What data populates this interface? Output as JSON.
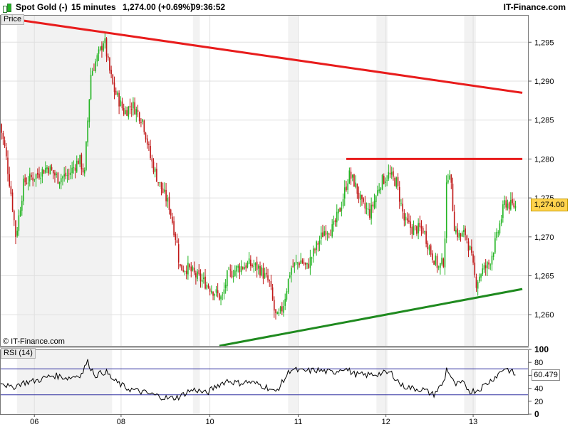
{
  "header": {
    "instrument": "Spot Gold (-)",
    "timeframe": "15 minutes",
    "price_change": "1,274.00 (+0.69%)",
    "time": "09:36:52",
    "brand": "IT-Finance.com"
  },
  "panels": {
    "price_label": "Price",
    "rsi_label": "RSI (14)",
    "copyright": "© IT-Finance.com",
    "last_price": "1,274.00",
    "last_rsi": "60.479"
  },
  "colors": {
    "up_candle": "#22b422",
    "down_candle": "#c01818",
    "resistance_line": "#e81c1c",
    "support_line": "#1f8a1f",
    "grid": "#e0e0e0",
    "shade": "#f2f2f2",
    "rsi_line": "#000000",
    "rsi_levels": "#3030a0"
  },
  "chart_data": [
    {
      "type": "candlestick",
      "ylim": [
        1256,
        1298.5
      ],
      "y_ticks": [
        "1,260",
        "1,265",
        "1,270",
        "1,275",
        "1,280",
        "1,285",
        "1,290",
        "1,295"
      ],
      "y_tick_values": [
        1260,
        1265,
        1270,
        1275,
        1280,
        1285,
        1290,
        1295
      ],
      "x_ticks": [
        "06",
        "08",
        "10",
        "11",
        "12",
        "13"
      ],
      "x_tick_positions": [
        0.065,
        0.229,
        0.397,
        0.564,
        0.73,
        0.895
      ],
      "shaded_sessions": [
        [
          0.032,
          0.212
        ],
        [
          0.365,
          0.378
        ],
        [
          0.545,
          0.565
        ],
        [
          0.712,
          0.733
        ],
        [
          0.878,
          0.9
        ]
      ],
      "keypoints": [
        [
          0.0,
          1284.5
        ],
        [
          0.01,
          1281
        ],
        [
          0.022,
          1275
        ],
        [
          0.03,
          1270
        ],
        [
          0.045,
          1277
        ],
        [
          0.07,
          1278
        ],
        [
          0.09,
          1279
        ],
        [
          0.11,
          1277.5
        ],
        [
          0.13,
          1278
        ],
        [
          0.15,
          1280
        ],
        [
          0.16,
          1278
        ],
        [
          0.165,
          1284
        ],
        [
          0.172,
          1291
        ],
        [
          0.19,
          1294
        ],
        [
          0.197,
          1295.5
        ],
        [
          0.205,
          1292
        ],
        [
          0.215,
          1289
        ],
        [
          0.235,
          1286
        ],
        [
          0.25,
          1287
        ],
        [
          0.27,
          1285
        ],
        [
          0.285,
          1280
        ],
        [
          0.3,
          1277
        ],
        [
          0.32,
          1274
        ],
        [
          0.335,
          1269
        ],
        [
          0.34,
          1266
        ],
        [
          0.355,
          1266
        ],
        [
          0.37,
          1265
        ],
        [
          0.39,
          1264
        ],
        [
          0.405,
          1263
        ],
        [
          0.42,
          1262
        ],
        [
          0.43,
          1265
        ],
        [
          0.45,
          1266
        ],
        [
          0.47,
          1266.5
        ],
        [
          0.49,
          1266
        ],
        [
          0.51,
          1264
        ],
        [
          0.52,
          1260
        ],
        [
          0.525,
          1259.5
        ],
        [
          0.535,
          1261
        ],
        [
          0.55,
          1266
        ],
        [
          0.57,
          1267
        ],
        [
          0.58,
          1266
        ],
        [
          0.6,
          1269
        ],
        [
          0.615,
          1271
        ],
        [
          0.63,
          1271
        ],
        [
          0.645,
          1274
        ],
        [
          0.66,
          1278
        ],
        [
          0.67,
          1277
        ],
        [
          0.685,
          1274
        ],
        [
          0.7,
          1273
        ],
        [
          0.71,
          1275
        ],
        [
          0.72,
          1277
        ],
        [
          0.735,
          1278
        ],
        [
          0.75,
          1277
        ],
        [
          0.765,
          1272
        ],
        [
          0.78,
          1271
        ],
        [
          0.8,
          1271
        ],
        [
          0.815,
          1268
        ],
        [
          0.83,
          1266
        ],
        [
          0.84,
          1267
        ],
        [
          0.845,
          1277
        ],
        [
          0.85,
          1279
        ],
        [
          0.86,
          1271
        ],
        [
          0.87,
          1270
        ],
        [
          0.88,
          1270.5
        ],
        [
          0.89,
          1268
        ],
        [
          0.9,
          1264
        ],
        [
          0.91,
          1265.5
        ],
        [
          0.925,
          1266.5
        ],
        [
          0.94,
          1270
        ],
        [
          0.955,
          1274.5
        ],
        [
          0.965,
          1274
        ],
        [
          0.975,
          1274
        ]
      ],
      "candle_count": 330,
      "trendlines": [
        {
          "role": "resistance",
          "from": [
            0.0,
            1298.2
          ],
          "to": [
            0.988,
            1288.5
          ]
        },
        {
          "role": "resistance",
          "from": [
            0.655,
            1280
          ],
          "to": [
            0.988,
            1280
          ]
        },
        {
          "role": "support",
          "from": [
            0.415,
            1256
          ],
          "to": [
            0.988,
            1263.3
          ]
        }
      ],
      "last_value": 1274.0
    },
    {
      "type": "line",
      "name": "RSI (14)",
      "ylim": [
        0,
        100
      ],
      "y_ticks": [
        "100",
        "80",
        "60",
        "40",
        "20",
        "0"
      ],
      "y_tick_values": [
        100,
        80,
        60,
        40,
        20,
        0
      ],
      "levels": [
        70,
        30
      ],
      "keypoints": [
        [
          0.0,
          52
        ],
        [
          0.02,
          40
        ],
        [
          0.04,
          48
        ],
        [
          0.07,
          52
        ],
        [
          0.1,
          60
        ],
        [
          0.13,
          56
        ],
        [
          0.155,
          62
        ],
        [
          0.165,
          82
        ],
        [
          0.18,
          60
        ],
        [
          0.2,
          66
        ],
        [
          0.215,
          52
        ],
        [
          0.24,
          40
        ],
        [
          0.26,
          36
        ],
        [
          0.28,
          32
        ],
        [
          0.3,
          28
        ],
        [
          0.32,
          24
        ],
        [
          0.34,
          27
        ],
        [
          0.355,
          35
        ],
        [
          0.37,
          38
        ],
        [
          0.39,
          32
        ],
        [
          0.41,
          44
        ],
        [
          0.43,
          52
        ],
        [
          0.45,
          48
        ],
        [
          0.47,
          50
        ],
        [
          0.49,
          46
        ],
        [
          0.51,
          40
        ],
        [
          0.52,
          33
        ],
        [
          0.535,
          50
        ],
        [
          0.55,
          70
        ],
        [
          0.57,
          66
        ],
        [
          0.6,
          68
        ],
        [
          0.63,
          64
        ],
        [
          0.65,
          72
        ],
        [
          0.67,
          62
        ],
        [
          0.69,
          60
        ],
        [
          0.71,
          62
        ],
        [
          0.74,
          64
        ],
        [
          0.76,
          44
        ],
        [
          0.78,
          40
        ],
        [
          0.8,
          38
        ],
        [
          0.82,
          30
        ],
        [
          0.84,
          50
        ],
        [
          0.845,
          72
        ],
        [
          0.86,
          45
        ],
        [
          0.875,
          48
        ],
        [
          0.89,
          35
        ],
        [
          0.905,
          38
        ],
        [
          0.925,
          50
        ],
        [
          0.94,
          60
        ],
        [
          0.955,
          72
        ],
        [
          0.97,
          64
        ],
        [
          0.975,
          60.479
        ]
      ],
      "last_value": 60.479
    }
  ]
}
